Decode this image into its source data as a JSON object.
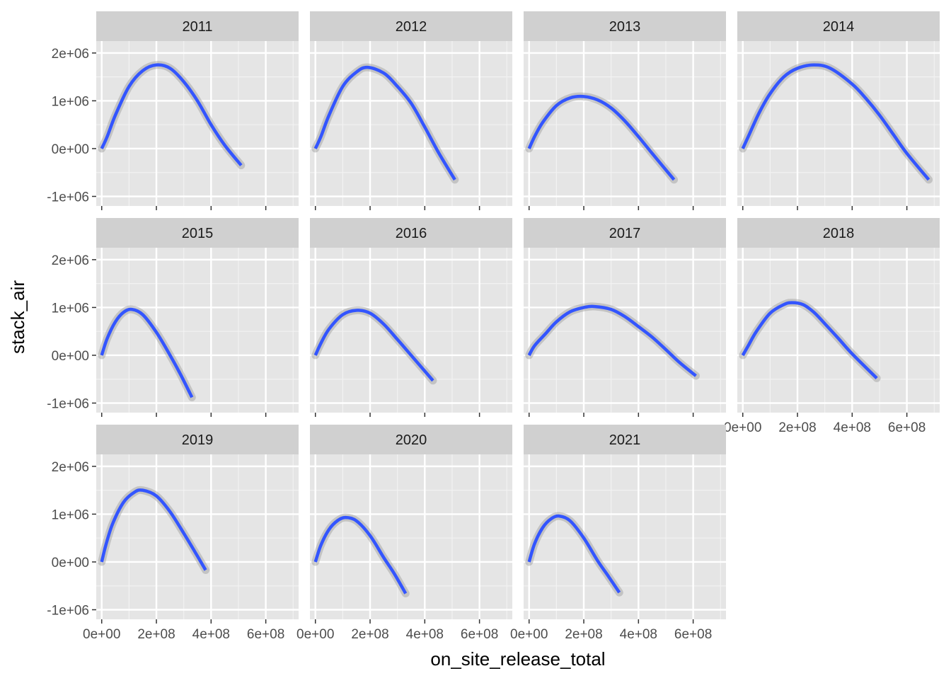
{
  "chart_data": {
    "type": "line",
    "xlabel": "on_site_release_total",
    "ylabel": "stack_air",
    "xlim": [
      -20000000,
      720000000
    ],
    "ylim": [
      -1200000,
      2250000
    ],
    "x_ticks": [
      0,
      200000000,
      400000000,
      600000000
    ],
    "x_tick_labels": [
      "0e+00",
      "2e+08",
      "4e+08",
      "6e+08"
    ],
    "y_ticks": [
      -1000000,
      0,
      1000000,
      2000000
    ],
    "y_tick_labels": [
      "-1e+06",
      "0e+00",
      "1e+06",
      "2e+06"
    ],
    "grid": true,
    "line_color": "#3355ff",
    "ribbon_color": "#999999",
    "panel_background": "#e5e5e5",
    "strip_background": "#d0d0d0",
    "panels": [
      {
        "year": "2011",
        "x": [
          0,
          20000000,
          50000000,
          100000000,
          150000000,
          200000000,
          250000000,
          300000000,
          350000000,
          400000000,
          450000000,
          510000000
        ],
        "y": [
          0,
          250000,
          700000,
          1300000,
          1630000,
          1750000,
          1680000,
          1400000,
          1000000,
          500000,
          70000,
          -350000
        ]
      },
      {
        "year": "2012",
        "x": [
          0,
          20000000,
          50000000,
          100000000,
          150000000,
          190000000,
          250000000,
          300000000,
          350000000,
          400000000,
          450000000,
          510000000
        ],
        "y": [
          0,
          250000,
          700000,
          1300000,
          1600000,
          1700000,
          1580000,
          1300000,
          950000,
          450000,
          -80000,
          -650000
        ]
      },
      {
        "year": "2013",
        "x": [
          0,
          20000000,
          50000000,
          100000000,
          150000000,
          200000000,
          250000000,
          300000000,
          350000000,
          400000000,
          450000000,
          530000000
        ],
        "y": [
          0,
          250000,
          550000,
          900000,
          1060000,
          1090000,
          1020000,
          850000,
          580000,
          250000,
          -100000,
          -650000
        ]
      },
      {
        "year": "2014",
        "x": [
          0,
          20000000,
          60000000,
          100000000,
          150000000,
          200000000,
          260000000,
          320000000,
          400000000,
          450000000,
          500000000,
          550000000,
          600000000,
          680000000
        ],
        "y": [
          0,
          250000,
          750000,
          1150000,
          1500000,
          1680000,
          1750000,
          1680000,
          1350000,
          1050000,
          700000,
          300000,
          -100000,
          -650000
        ]
      },
      {
        "year": "2015",
        "x": [
          0,
          20000000,
          50000000,
          80000000,
          110000000,
          150000000,
          200000000,
          250000000,
          290000000,
          330000000
        ],
        "y": [
          0,
          350000,
          700000,
          900000,
          960000,
          850000,
          480000,
          0,
          -420000,
          -880000
        ]
      },
      {
        "year": "2016",
        "x": [
          0,
          20000000,
          50000000,
          100000000,
          150000000,
          200000000,
          250000000,
          300000000,
          350000000,
          430000000
        ],
        "y": [
          0,
          250000,
          550000,
          850000,
          940000,
          880000,
          650000,
          330000,
          0,
          -530000
        ]
      },
      {
        "year": "2017",
        "x": [
          0,
          20000000,
          60000000,
          100000000,
          150000000,
          200000000,
          240000000,
          300000000,
          350000000,
          400000000,
          450000000,
          500000000,
          550000000,
          610000000
        ],
        "y": [
          0,
          200000,
          450000,
          700000,
          910000,
          1000000,
          1020000,
          960000,
          810000,
          600000,
          380000,
          120000,
          -150000,
          -430000
        ]
      },
      {
        "year": "2018",
        "x": [
          0,
          20000000,
          50000000,
          100000000,
          150000000,
          180000000,
          220000000,
          260000000,
          300000000,
          350000000,
          400000000,
          490000000
        ],
        "y": [
          0,
          200000,
          500000,
          880000,
          1060000,
          1100000,
          1060000,
          900000,
          660000,
          350000,
          30000,
          -480000
        ]
      },
      {
        "year": "2019",
        "x": [
          0,
          15000000,
          40000000,
          80000000,
          120000000,
          150000000,
          200000000,
          250000000,
          300000000,
          340000000,
          380000000
        ],
        "y": [
          0,
          350000,
          800000,
          1250000,
          1460000,
          1500000,
          1380000,
          1050000,
          600000,
          220000,
          -170000
        ]
      },
      {
        "year": "2020",
        "x": [
          0,
          20000000,
          50000000,
          80000000,
          110000000,
          150000000,
          200000000,
          250000000,
          290000000,
          330000000
        ],
        "y": [
          0,
          350000,
          680000,
          860000,
          930000,
          860000,
          550000,
          90000,
          -260000,
          -660000
        ]
      },
      {
        "year": "2021",
        "x": [
          0,
          20000000,
          50000000,
          80000000,
          110000000,
          150000000,
          200000000,
          250000000,
          290000000,
          330000000
        ],
        "y": [
          0,
          380000,
          720000,
          900000,
          960000,
          860000,
          500000,
          30000,
          -300000,
          -640000
        ]
      }
    ]
  }
}
